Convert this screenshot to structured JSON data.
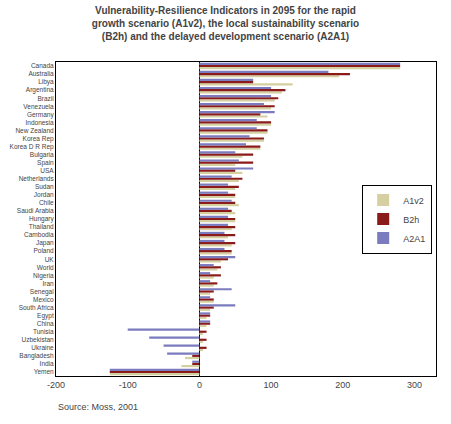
{
  "chart_data": {
    "type": "bar",
    "orientation": "horizontal",
    "title": "Vulnerability-Resilience Indicators in 2095 for the rapid\ngrowth scenario (A1v2), the local sustainability scenario\n(B2h) and the delayed development scenario (A2A1)",
    "annotations": [
      "Source: Moss, 2001"
    ],
    "categories": [
      "Canada",
      "Australia",
      "Libya",
      "Argentina",
      "Brazil",
      "Venezuela",
      "Germany",
      "Indonesia",
      "New Zealand",
      "Korea Rep",
      "Korea D R Rep",
      "Bulgaria",
      "Spain",
      "USA",
      "Netherlands",
      "Sudan",
      "Jordan",
      "Chile",
      "Saudi Arabia",
      "Hungary",
      "Thailand",
      "Cambodia",
      "Japan",
      "Poland",
      "UK",
      "World",
      "Nigeria",
      "Iran",
      "Senegal",
      "Mexico",
      "South Africa",
      "Egypt",
      "China",
      "Tunisia",
      "Uzbekistan",
      "Ukraine",
      "Bangladesh",
      "India",
      "Yemen"
    ],
    "series": [
      {
        "name": "A1v2",
        "color": "#d4d0a0",
        "values": [
          280,
          195,
          130,
          115,
          105,
          100,
          95,
          100,
          95,
          90,
          85,
          60,
          50,
          60,
          55,
          50,
          50,
          55,
          50,
          50,
          45,
          40,
          45,
          45,
          30,
          25,
          20,
          20,
          15,
          20,
          15,
          10,
          10,
          5,
          5,
          5,
          -20,
          -25,
          -125
        ]
      },
      {
        "name": "B2h",
        "color": "#8b1a1a",
        "values": [
          280,
          210,
          75,
          120,
          110,
          105,
          85,
          100,
          95,
          90,
          85,
          75,
          75,
          50,
          60,
          55,
          50,
          50,
          45,
          50,
          50,
          50,
          50,
          45,
          40,
          30,
          30,
          25,
          20,
          20,
          20,
          15,
          15,
          10,
          10,
          10,
          -10,
          -10,
          -125
        ]
      },
      {
        "name": "A2A1",
        "color": "#7b7bbf",
        "values": [
          280,
          180,
          75,
          100,
          100,
          90,
          105,
          80,
          80,
          70,
          65,
          50,
          55,
          75,
          45,
          40,
          40,
          45,
          40,
          40,
          40,
          35,
          35,
          35,
          50,
          20,
          15,
          15,
          45,
          15,
          50,
          15,
          15,
          -100,
          -70,
          -50,
          -45,
          -10,
          -125
        ]
      }
    ],
    "xlim": [
      -200,
      330
    ],
    "xticks": [
      -200,
      -100,
      0,
      100,
      200,
      300
    ],
    "grid": false,
    "legend": "right"
  }
}
